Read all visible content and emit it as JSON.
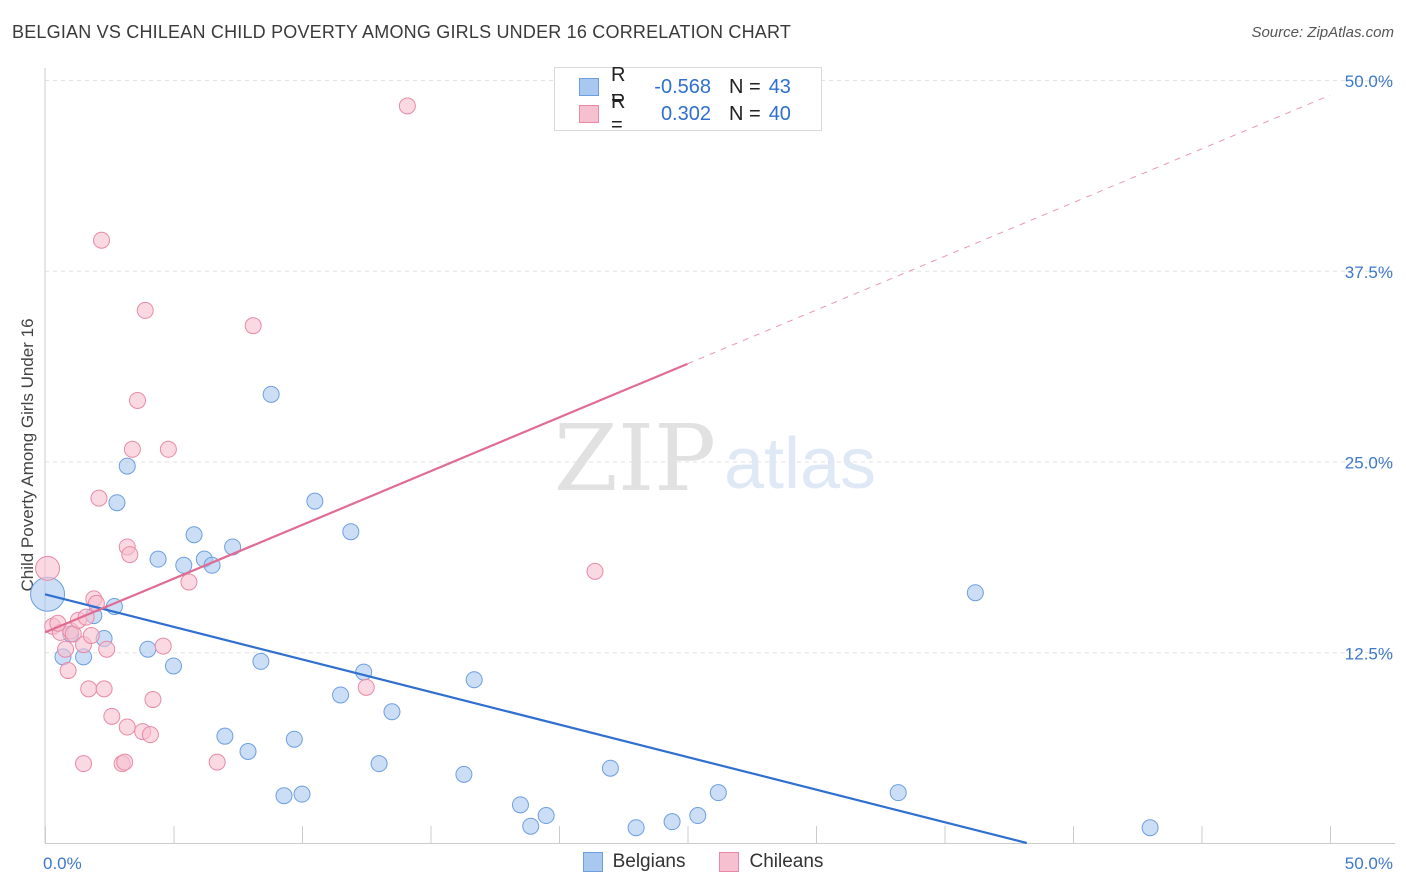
{
  "title": "BELGIAN VS CHILEAN CHILD POVERTY AMONG GIRLS UNDER 16 CORRELATION CHART",
  "source": "Source: ZipAtlas.com",
  "watermark": {
    "zip": "ZIP",
    "atlas": "atlas"
  },
  "legend_stats": [
    {
      "r_label": "R =",
      "r_value": "-0.568",
      "n_label": "N =",
      "n_value": "43",
      "color": "#a9c8f0",
      "border": "#6d9fe0"
    },
    {
      "r_label": "R =",
      "r_value": "0.302",
      "n_label": "N =",
      "n_value": "40",
      "color": "#f7c0d0",
      "border": "#e88aa6"
    }
  ],
  "bottom_legend": [
    {
      "label": "Belgians",
      "color": "#a9c8f0",
      "border": "#6d9fe0"
    },
    {
      "label": "Chileans",
      "color": "#f7c0d0",
      "border": "#e88aa6"
    }
  ],
  "chart_data": {
    "type": "scatter",
    "title": "BELGIAN VS CHILEAN CHILD POVERTY AMONG GIRLS UNDER 16 CORRELATION CHART",
    "xlabel": "",
    "ylabel": "Child Poverty Among Girls Under 16",
    "xlim": [
      0,
      50
    ],
    "ylim": [
      0,
      50
    ],
    "x_tick_labels": [
      "0.0%",
      "50.0%"
    ],
    "y_ticks": [
      12.5,
      25.0,
      37.5,
      50.0
    ],
    "y_tick_labels": [
      "12.5%",
      "25.0%",
      "37.5%",
      "50.0%"
    ],
    "grid": true,
    "series": [
      {
        "name": "Belgians",
        "color": "#a9c8f0",
        "stroke": "#6d9fe0",
        "line_color": "#2f6fd0",
        "trend": {
          "x0": 0,
          "y0": 16.3,
          "x1": 38.2,
          "y1": 0
        },
        "points": [
          [
            0.1,
            16.3
          ],
          [
            0.7,
            12.2
          ],
          [
            1.0,
            13.7
          ],
          [
            1.5,
            12.2
          ],
          [
            1.9,
            14.9
          ],
          [
            2.3,
            13.4
          ],
          [
            2.7,
            15.5
          ],
          [
            2.8,
            22.3
          ],
          [
            3.2,
            24.7
          ],
          [
            4.0,
            12.7
          ],
          [
            4.4,
            18.6
          ],
          [
            5.0,
            11.6
          ],
          [
            5.4,
            18.2
          ],
          [
            5.8,
            20.2
          ],
          [
            6.2,
            18.6
          ],
          [
            6.5,
            18.2
          ],
          [
            7.0,
            7.0
          ],
          [
            7.3,
            19.4
          ],
          [
            7.9,
            6.0
          ],
          [
            8.4,
            11.9
          ],
          [
            8.8,
            29.4
          ],
          [
            9.3,
            3.1
          ],
          [
            9.7,
            6.8
          ],
          [
            10.0,
            3.2
          ],
          [
            10.5,
            22.4
          ],
          [
            11.5,
            9.7
          ],
          [
            11.9,
            20.4
          ],
          [
            12.4,
            11.2
          ],
          [
            13.0,
            5.2
          ],
          [
            13.5,
            8.6
          ],
          [
            16.3,
            4.5
          ],
          [
            16.7,
            10.7
          ],
          [
            18.5,
            2.5
          ],
          [
            18.9,
            1.1
          ],
          [
            19.5,
            1.8
          ],
          [
            22.0,
            4.9
          ],
          [
            23.0,
            1.0
          ],
          [
            24.4,
            1.4
          ],
          [
            25.4,
            1.8
          ],
          [
            26.2,
            3.3
          ],
          [
            33.2,
            3.3
          ],
          [
            36.2,
            16.4
          ],
          [
            43.0,
            1.0
          ]
        ]
      },
      {
        "name": "Chileans",
        "color": "#f7c0d0",
        "stroke": "#e88aa6",
        "line_color": "#e06c94",
        "trend": {
          "x0": 0,
          "y0": 13.8,
          "x1": 25.0,
          "y1": 31.4
        },
        "trend_dashed_to": {
          "x": 50.0,
          "y": 49.0
        },
        "points": [
          [
            0.1,
            18.0
          ],
          [
            0.3,
            14.2
          ],
          [
            0.6,
            13.8
          ],
          [
            0.8,
            12.7
          ],
          [
            1.0,
            13.9
          ],
          [
            1.1,
            13.7
          ],
          [
            0.9,
            11.3
          ],
          [
            1.3,
            14.6
          ],
          [
            1.5,
            13.0
          ],
          [
            1.6,
            14.8
          ],
          [
            1.5,
            5.2
          ],
          [
            1.7,
            10.1
          ],
          [
            1.8,
            13.6
          ],
          [
            1.9,
            16.0
          ],
          [
            2.0,
            15.7
          ],
          [
            2.1,
            22.6
          ],
          [
            2.2,
            39.5
          ],
          [
            2.3,
            10.1
          ],
          [
            2.4,
            12.7
          ],
          [
            2.6,
            8.3
          ],
          [
            3.0,
            5.2
          ],
          [
            3.1,
            5.3
          ],
          [
            3.2,
            19.4
          ],
          [
            3.2,
            7.6
          ],
          [
            3.3,
            18.9
          ],
          [
            3.4,
            25.8
          ],
          [
            3.6,
            29.0
          ],
          [
            3.8,
            7.3
          ],
          [
            3.9,
            34.9
          ],
          [
            4.1,
            7.1
          ],
          [
            4.2,
            9.4
          ],
          [
            4.6,
            12.9
          ],
          [
            4.8,
            25.8
          ],
          [
            5.6,
            17.1
          ],
          [
            6.7,
            5.3
          ],
          [
            8.1,
            33.9
          ],
          [
            12.5,
            10.2
          ],
          [
            14.1,
            48.3
          ],
          [
            21.4,
            17.8
          ],
          [
            0.5,
            14.4
          ]
        ]
      }
    ]
  }
}
